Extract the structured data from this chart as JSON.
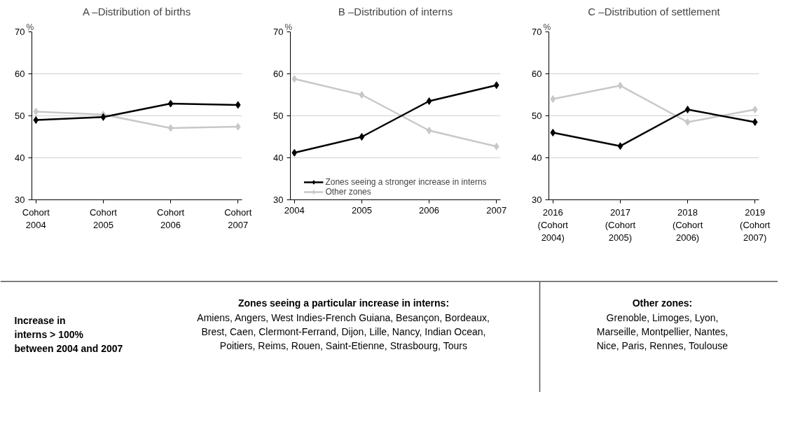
{
  "chart_data": [
    {
      "type": "line",
      "title": "A –Distribution of births",
      "ylabel": "%",
      "categories": [
        "Cohort 2004",
        "Cohort 2005",
        "Cohort 2006",
        "Cohort 2007"
      ],
      "ylim": [
        30,
        70
      ],
      "yticks": [
        30,
        40,
        50,
        60,
        70
      ],
      "grid": "y",
      "marker": "diamond",
      "series": [
        {
          "color": "#c8c8c8",
          "values": [
            51.0,
            50.3,
            47.1,
            47.4
          ]
        },
        {
          "color": "#000000",
          "values": [
            49.0,
            49.7,
            52.9,
            52.6
          ]
        }
      ]
    },
    {
      "type": "line",
      "title": "B –Distribution of interns",
      "ylabel": "%",
      "categories": [
        "2004",
        "2005",
        "2006",
        "2007"
      ],
      "ylim": [
        30,
        70
      ],
      "yticks": [
        30,
        40,
        50,
        60,
        70
      ],
      "grid": "y",
      "marker": "diamond",
      "legend": "bottom",
      "series": [
        {
          "name": "Other zones",
          "color": "#c8c8c8",
          "values": [
            58.8,
            55.0,
            46.5,
            42.7
          ]
        },
        {
          "name": "Zones seeing a stronger increase in interns",
          "color": "#000000",
          "values": [
            41.2,
            45.0,
            53.5,
            57.3
          ]
        }
      ]
    },
    {
      "type": "line",
      "title": "C –Distribution of settlement",
      "ylabel": "%",
      "categories": [
        "2016 (Cohort 2004)",
        "2017 (Cohort 2005)",
        "2018 (Cohort 2006)",
        "2019 (Cohort 2007)"
      ],
      "ylim": [
        30,
        70
      ],
      "yticks": [
        30,
        40,
        50,
        60,
        70
      ],
      "grid": "y",
      "marker": "diamond",
      "series": [
        {
          "color": "#c8c8c8",
          "values": [
            54.0,
            57.2,
            48.5,
            51.5
          ]
        },
        {
          "color": "#000000",
          "values": [
            46.0,
            42.8,
            51.5,
            48.5
          ]
        }
      ]
    },
    {
      "type": "other",
      "annotations": [
        "Increase in\ninterns > 100%\nbetween 2004 and 2007",
        "Zones seeing a particular increase in interns:",
        "Amiens, Angers, West Indies-French Guiana, Besançon, Bordeaux,\nBrest, Caen, Clermont-Ferrand, Dijon, Lille, Nancy, Indian Ocean,\nPoitiers, Reims, Rouen, Saint-Etienne, Strasbourg, Tours",
        "Other zones:",
        "Grenoble, Limoges, Lyon,\nMarseille, Montpellier, Nantes,\nNice, Paris, Rennes, Toulouse"
      ]
    }
  ]
}
